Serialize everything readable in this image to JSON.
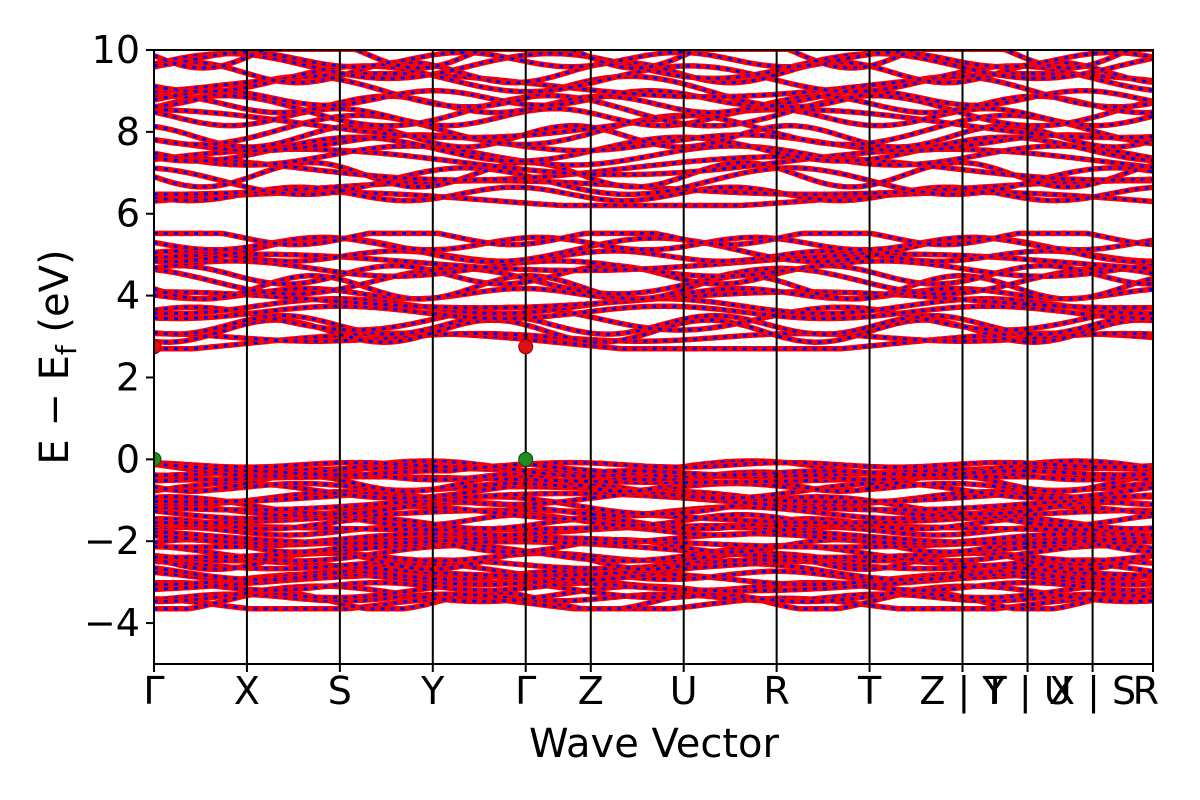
{
  "chart_data": {
    "type": "line",
    "title": "",
    "xlabel": "Wave Vector",
    "ylabel": "E − E_f (eV)",
    "ylabel_main": "E − E",
    "ylabel_sub": "f",
    "ylabel_unit": " (eV)",
    "ylim": [
      -5,
      10
    ],
    "yticks": [
      10,
      8,
      6,
      4,
      2,
      0,
      -2,
      -4
    ],
    "ytick_labels": [
      "10",
      "8",
      "6",
      "4",
      "2",
      "0",
      "−2",
      "−4"
    ],
    "xlim": [
      0,
      10.75
    ],
    "kpoints": [
      {
        "label": "Γ",
        "x": 0
      },
      {
        "label": "X",
        "x": 1.0
      },
      {
        "label": "S",
        "x": 2.0
      },
      {
        "label": "Y",
        "x": 3.0
      },
      {
        "label": "Γ",
        "x": 4.0
      },
      {
        "label": "Z",
        "x": 4.7
      },
      {
        "label": "U",
        "x": 5.7
      },
      {
        "label": "R",
        "x": 6.7
      },
      {
        "label": "T",
        "x": 7.7
      },
      {
        "label": "Z | Y",
        "x": 8.7
      },
      {
        "label": "T | U",
        "x": 9.4
      },
      {
        "label": "X | S",
        "x": 10.1
      },
      {
        "label": "R",
        "x": 10.75
      }
    ],
    "grid": false,
    "legend": "none",
    "colors": {
      "spin_up": "#ff0000",
      "spin_down": "#0000ff",
      "vbm": "#228b22",
      "cbm": "#dd1111",
      "kline": "#000000"
    },
    "markers": {
      "cbm": [
        {
          "x": 0,
          "y": 2.75
        },
        {
          "x": 4.0,
          "y": 2.75
        }
      ],
      "vbm": [
        {
          "x": 0,
          "y": 0.0
        },
        {
          "x": 4.0,
          "y": 0.0
        }
      ]
    },
    "band_groups": {
      "valence": {
        "min": -3.6,
        "max": 0.0,
        "count": 40
      },
      "conduction_low": {
        "min": 2.75,
        "max": 5.5,
        "count": 18
      },
      "conduction_high": {
        "min": 6.25,
        "max": 10.0,
        "count": 24
      }
    }
  }
}
